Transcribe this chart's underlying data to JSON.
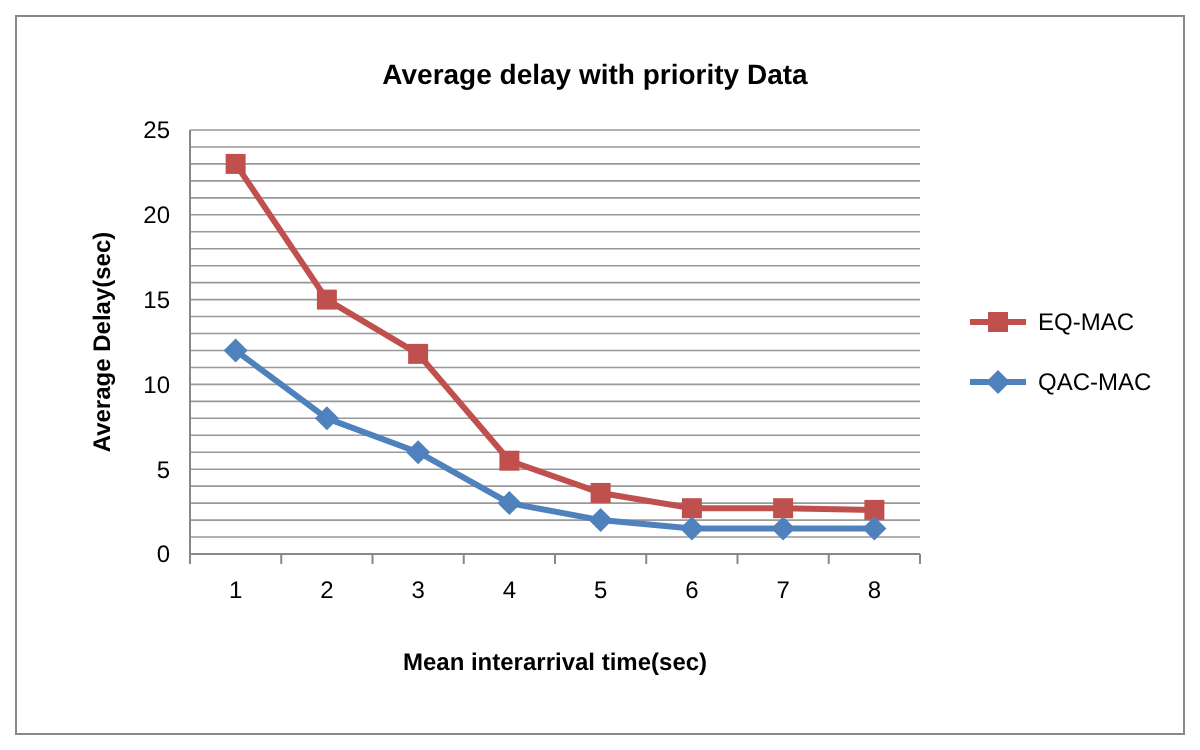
{
  "chart_data": {
    "type": "line",
    "title": "Average delay with priority Data",
    "xlabel": "Mean interarrival time(sec)",
    "ylabel": "Average Delay(sec)",
    "categories": [
      "1",
      "2",
      "3",
      "4",
      "5",
      "6",
      "7",
      "8"
    ],
    "series": [
      {
        "name": "EQ-MAC",
        "color": "#c0504d",
        "marker": "square",
        "values": [
          23,
          15,
          11.8,
          5.5,
          3.6,
          2.7,
          2.7,
          2.6
        ]
      },
      {
        "name": "QAC-MAC",
        "color": "#4f81bd",
        "marker": "diamond",
        "values": [
          12,
          8,
          6,
          3,
          2,
          1.5,
          1.5,
          1.5
        ]
      }
    ],
    "ylim": [
      0,
      25
    ],
    "yticks": [
      0,
      {
        "value": 1,
        "label": null
      },
      {
        "value": 2,
        "label": null
      },
      {
        "value": 3,
        "label": null
      },
      {
        "value": 4,
        "label": null
      },
      5,
      {
        "value": 6,
        "label": null
      },
      {
        "value": 7,
        "label": null
      },
      {
        "value": 8,
        "label": null
      },
      {
        "value": 9,
        "label": null
      },
      10,
      {
        "value": 11,
        "label": null
      },
      {
        "value": 12,
        "label": null
      },
      {
        "value": 13,
        "label": null
      },
      {
        "value": 14,
        "label": null
      },
      15,
      {
        "value": 16,
        "label": null
      },
      {
        "value": 17,
        "label": null
      },
      {
        "value": 18,
        "label": null
      },
      {
        "value": 19,
        "label": null
      },
      20,
      {
        "value": 21,
        "label": null
      },
      {
        "value": 22,
        "label": null
      },
      {
        "value": 23,
        "label": null
      },
      {
        "value": 24,
        "label": null
      },
      25
    ],
    "grid": "y",
    "legend": "right",
    "line_style": "solid"
  }
}
